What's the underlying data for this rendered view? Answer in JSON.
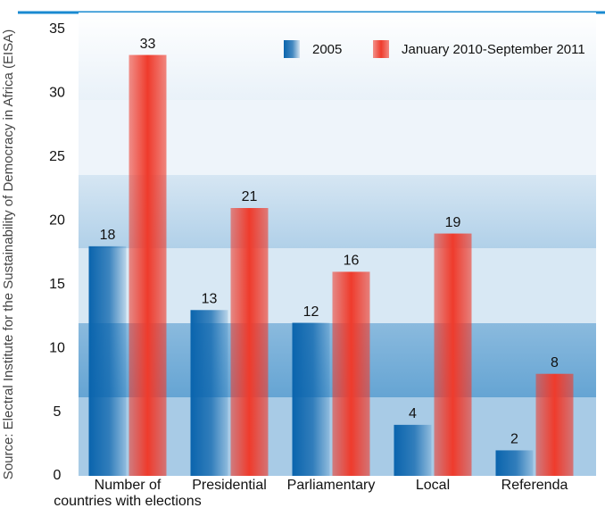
{
  "chart_data": {
    "type": "bar",
    "source": "Source: Electral Institute for the Sustainability of Democracy in Africa (EISA)",
    "categories": [
      "Number of\ncountries with elections",
      "Presidential",
      "Parliamentary",
      "Local",
      "Referenda"
    ],
    "series": [
      {
        "name": "2005",
        "color": "#0a64ad",
        "values": [
          18,
          13,
          12,
          4,
          2
        ]
      },
      {
        "name": "January 2010-September 2011",
        "color": "#ef3b2c",
        "values": [
          33,
          21,
          16,
          19,
          8
        ]
      }
    ],
    "ylim": [
      0,
      35
    ],
    "yticks": [
      0,
      5,
      10,
      15,
      20,
      25,
      30,
      35
    ]
  }
}
